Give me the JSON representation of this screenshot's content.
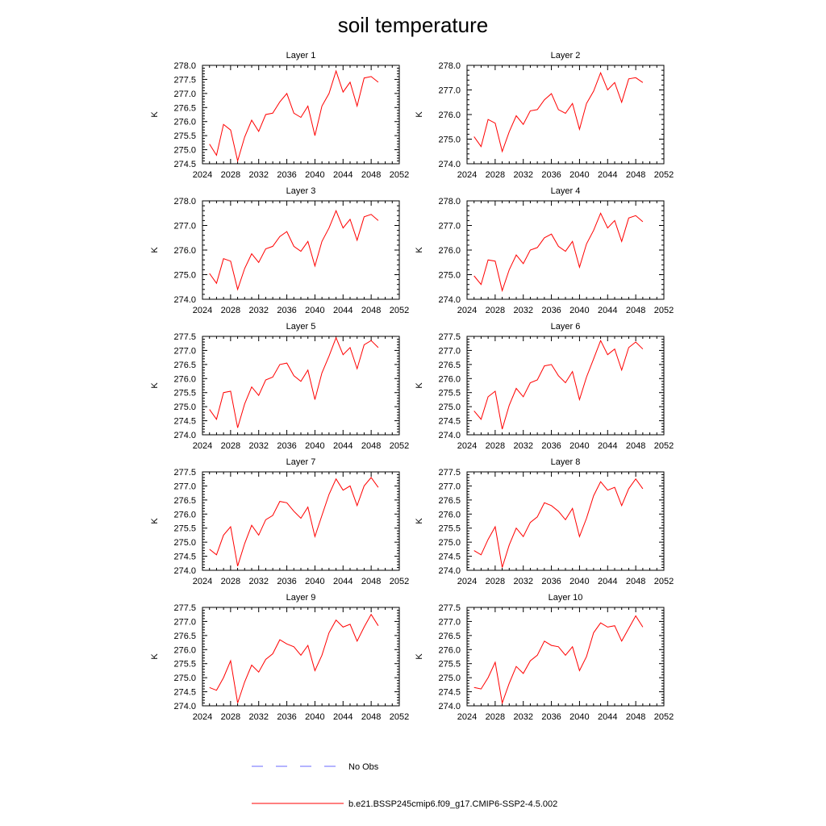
{
  "title": "soil temperature",
  "legend": {
    "entries": [
      {
        "label": "No Obs",
        "color": "#0000ff",
        "style": "dashed"
      },
      {
        "label": "b.e21.BSSP245cmip6.f09_g17.CMIP6-SSP2-4.5.002",
        "color": "#ff0000",
        "style": "solid"
      }
    ]
  },
  "chart_data": [
    {
      "type": "line",
      "title": "Layer 1",
      "ylabel": "K",
      "xlim": [
        2024,
        2052
      ],
      "ylim": [
        274.5,
        278.0
      ],
      "xticks": [
        "2024",
        "2028",
        "2032",
        "2036",
        "2040",
        "2044",
        "2048",
        "2052"
      ],
      "yticks": [
        "274.5",
        "275.0",
        "275.5",
        "276.0",
        "276.5",
        "277.0",
        "277.5",
        "278.0"
      ],
      "x": [
        2025,
        2026,
        2027,
        2028,
        2029,
        2030,
        2031,
        2032,
        2033,
        2034,
        2035,
        2036,
        2037,
        2038,
        2039,
        2040,
        2041,
        2042,
        2043,
        2044,
        2045,
        2046,
        2047,
        2048,
        2049
      ],
      "series": [
        {
          "name": "b.e21.BSSP245cmip6.f09_g17.CMIP6-SSP2-4.5.002",
          "color": "#ff0000",
          "values": [
            275.2,
            274.8,
            275.9,
            275.7,
            274.6,
            275.45,
            276.05,
            275.65,
            276.25,
            276.3,
            276.7,
            277.0,
            276.3,
            276.15,
            276.55,
            275.5,
            276.55,
            277.0,
            277.8,
            277.05,
            277.4,
            276.55,
            277.55,
            277.6,
            277.4
          ]
        }
      ]
    },
    {
      "type": "line",
      "title": "Layer 2",
      "ylabel": "K",
      "xlim": [
        2024,
        2052
      ],
      "ylim": [
        274.0,
        278.0
      ],
      "xticks": [
        "2024",
        "2028",
        "2032",
        "2036",
        "2040",
        "2044",
        "2048",
        "2052"
      ],
      "yticks": [
        "274.0",
        "275.0",
        "276.0",
        "277.0",
        "278.0"
      ],
      "x": [
        2025,
        2026,
        2027,
        2028,
        2029,
        2030,
        2031,
        2032,
        2033,
        2034,
        2035,
        2036,
        2037,
        2038,
        2039,
        2040,
        2041,
        2042,
        2043,
        2044,
        2045,
        2046,
        2047,
        2048,
        2049
      ],
      "series": [
        {
          "name": "b.e21.BSSP245cmip6.f09_g17.CMIP6-SSP2-4.5.002",
          "color": "#ff0000",
          "values": [
            275.1,
            274.7,
            275.8,
            275.65,
            274.5,
            275.3,
            275.95,
            275.6,
            276.15,
            276.2,
            276.6,
            276.85,
            276.2,
            276.05,
            276.45,
            275.4,
            276.45,
            276.95,
            277.7,
            277.0,
            277.3,
            276.5,
            277.45,
            277.5,
            277.3
          ]
        }
      ]
    },
    {
      "type": "line",
      "title": "Layer 3",
      "ylabel": "K",
      "xlim": [
        2024,
        2052
      ],
      "ylim": [
        274.0,
        278.0
      ],
      "xticks": [
        "2024",
        "2028",
        "2032",
        "2036",
        "2040",
        "2044",
        "2048",
        "2052"
      ],
      "yticks": [
        "274.0",
        "275.0",
        "276.0",
        "277.0",
        "278.0"
      ],
      "x": [
        2025,
        2026,
        2027,
        2028,
        2029,
        2030,
        2031,
        2032,
        2033,
        2034,
        2035,
        2036,
        2037,
        2038,
        2039,
        2040,
        2041,
        2042,
        2043,
        2044,
        2045,
        2046,
        2047,
        2048,
        2049
      ],
      "series": [
        {
          "name": "b.e21.BSSP245cmip6.f09_g17.CMIP6-SSP2-4.5.002",
          "color": "#ff0000",
          "values": [
            275.05,
            274.65,
            275.65,
            275.55,
            274.4,
            275.25,
            275.85,
            275.5,
            276.05,
            276.15,
            276.55,
            276.75,
            276.15,
            275.95,
            276.35,
            275.35,
            276.35,
            276.9,
            277.6,
            276.9,
            277.25,
            276.4,
            277.35,
            277.45,
            277.2
          ]
        }
      ]
    },
    {
      "type": "line",
      "title": "Layer 4",
      "ylabel": "K",
      "xlim": [
        2024,
        2052
      ],
      "ylim": [
        274.0,
        278.0
      ],
      "xticks": [
        "2024",
        "2028",
        "2032",
        "2036",
        "2040",
        "2044",
        "2048",
        "2052"
      ],
      "yticks": [
        "274.0",
        "275.0",
        "276.0",
        "277.0",
        "278.0"
      ],
      "x": [
        2025,
        2026,
        2027,
        2028,
        2029,
        2030,
        2031,
        2032,
        2033,
        2034,
        2035,
        2036,
        2037,
        2038,
        2039,
        2040,
        2041,
        2042,
        2043,
        2044,
        2045,
        2046,
        2047,
        2048,
        2049
      ],
      "series": [
        {
          "name": "b.e21.BSSP245cmip6.f09_g17.CMIP6-SSP2-4.5.002",
          "color": "#ff0000",
          "values": [
            274.95,
            274.6,
            275.6,
            275.55,
            274.35,
            275.2,
            275.8,
            275.45,
            276.0,
            276.1,
            276.5,
            276.65,
            276.15,
            275.95,
            276.35,
            275.3,
            276.25,
            276.8,
            277.5,
            276.9,
            277.2,
            276.35,
            277.3,
            277.4,
            277.15
          ]
        }
      ]
    },
    {
      "type": "line",
      "title": "Layer 5",
      "ylabel": "K",
      "xlim": [
        2024,
        2052
      ],
      "ylim": [
        274.0,
        277.5
      ],
      "xticks": [
        "2024",
        "2028",
        "2032",
        "2036",
        "2040",
        "2044",
        "2048",
        "2052"
      ],
      "yticks": [
        "274.0",
        "274.5",
        "275.0",
        "275.5",
        "276.0",
        "276.5",
        "277.0",
        "277.5"
      ],
      "x": [
        2025,
        2026,
        2027,
        2028,
        2029,
        2030,
        2031,
        2032,
        2033,
        2034,
        2035,
        2036,
        2037,
        2038,
        2039,
        2040,
        2041,
        2042,
        2043,
        2044,
        2045,
        2046,
        2047,
        2048,
        2049
      ],
      "series": [
        {
          "name": "b.e21.BSSP245cmip6.f09_g17.CMIP6-SSP2-4.5.002",
          "color": "#ff0000",
          "values": [
            274.9,
            274.55,
            275.5,
            275.55,
            274.25,
            275.1,
            275.7,
            275.4,
            275.95,
            276.05,
            276.5,
            276.55,
            276.1,
            275.9,
            276.3,
            275.25,
            276.2,
            276.8,
            277.45,
            276.85,
            277.1,
            276.35,
            277.2,
            277.35,
            277.1
          ]
        }
      ]
    },
    {
      "type": "line",
      "title": "Layer 6",
      "ylabel": "K",
      "xlim": [
        2024,
        2052
      ],
      "ylim": [
        274.0,
        277.5
      ],
      "xticks": [
        "2024",
        "2028",
        "2032",
        "2036",
        "2040",
        "2044",
        "2048",
        "2052"
      ],
      "yticks": [
        "274.0",
        "274.5",
        "275.0",
        "275.5",
        "276.0",
        "276.5",
        "277.0",
        "277.5"
      ],
      "x": [
        2025,
        2026,
        2027,
        2028,
        2029,
        2030,
        2031,
        2032,
        2033,
        2034,
        2035,
        2036,
        2037,
        2038,
        2039,
        2040,
        2041,
        2042,
        2043,
        2044,
        2045,
        2046,
        2047,
        2048,
        2049
      ],
      "series": [
        {
          "name": "b.e21.BSSP245cmip6.f09_g17.CMIP6-SSP2-4.5.002",
          "color": "#ff0000",
          "values": [
            274.85,
            274.55,
            275.35,
            275.55,
            274.2,
            275.05,
            275.65,
            275.35,
            275.85,
            275.95,
            276.45,
            276.5,
            276.1,
            275.85,
            276.25,
            275.25,
            276.05,
            276.7,
            277.35,
            276.85,
            277.05,
            276.3,
            277.1,
            277.3,
            277.05
          ]
        }
      ]
    },
    {
      "type": "line",
      "title": "Layer 7",
      "ylabel": "K",
      "xlim": [
        2024,
        2052
      ],
      "ylim": [
        274.0,
        277.5
      ],
      "xticks": [
        "2024",
        "2028",
        "2032",
        "2036",
        "2040",
        "2044",
        "2048",
        "2052"
      ],
      "yticks": [
        "274.0",
        "274.5",
        "275.0",
        "275.5",
        "276.0",
        "276.5",
        "277.0",
        "277.5"
      ],
      "x": [
        2025,
        2026,
        2027,
        2028,
        2029,
        2030,
        2031,
        2032,
        2033,
        2034,
        2035,
        2036,
        2037,
        2038,
        2039,
        2040,
        2041,
        2042,
        2043,
        2044,
        2045,
        2046,
        2047,
        2048,
        2049
      ],
      "series": [
        {
          "name": "b.e21.BSSP245cmip6.f09_g17.CMIP6-SSP2-4.5.002",
          "color": "#ff0000",
          "values": [
            274.75,
            274.55,
            275.25,
            275.55,
            274.15,
            274.95,
            275.6,
            275.25,
            275.8,
            275.95,
            276.45,
            276.4,
            276.1,
            275.85,
            276.25,
            275.2,
            275.95,
            276.7,
            277.25,
            276.85,
            277.0,
            276.3,
            277.0,
            277.3,
            276.95
          ]
        }
      ]
    },
    {
      "type": "line",
      "title": "Layer 8",
      "ylabel": "K",
      "xlim": [
        2024,
        2052
      ],
      "ylim": [
        274.0,
        277.5
      ],
      "xticks": [
        "2024",
        "2028",
        "2032",
        "2036",
        "2040",
        "2044",
        "2048",
        "2052"
      ],
      "yticks": [
        "274.0",
        "274.5",
        "275.0",
        "275.5",
        "276.0",
        "276.5",
        "277.0",
        "277.5"
      ],
      "x": [
        2025,
        2026,
        2027,
        2028,
        2029,
        2030,
        2031,
        2032,
        2033,
        2034,
        2035,
        2036,
        2037,
        2038,
        2039,
        2040,
        2041,
        2042,
        2043,
        2044,
        2045,
        2046,
        2047,
        2048,
        2049
      ],
      "series": [
        {
          "name": "b.e21.BSSP245cmip6.f09_g17.CMIP6-SSP2-4.5.002",
          "color": "#ff0000",
          "values": [
            274.7,
            274.55,
            275.1,
            275.55,
            274.1,
            274.9,
            275.5,
            275.2,
            275.7,
            275.9,
            276.4,
            276.3,
            276.1,
            275.8,
            276.2,
            275.2,
            275.85,
            276.65,
            277.15,
            276.85,
            276.95,
            276.3,
            276.9,
            277.25,
            276.9
          ]
        }
      ]
    },
    {
      "type": "line",
      "title": "Layer 9",
      "ylabel": "K",
      "xlim": [
        2024,
        2052
      ],
      "ylim": [
        274.0,
        277.5
      ],
      "xticks": [
        "2024",
        "2028",
        "2032",
        "2036",
        "2040",
        "2044",
        "2048",
        "2052"
      ],
      "yticks": [
        "274.0",
        "274.5",
        "275.0",
        "275.5",
        "276.0",
        "276.5",
        "277.0",
        "277.5"
      ],
      "x": [
        2025,
        2026,
        2027,
        2028,
        2029,
        2030,
        2031,
        2032,
        2033,
        2034,
        2035,
        2036,
        2037,
        2038,
        2039,
        2040,
        2041,
        2042,
        2043,
        2044,
        2045,
        2046,
        2047,
        2048,
        2049
      ],
      "series": [
        {
          "name": "b.e21.BSSP245cmip6.f09_g17.CMIP6-SSP2-4.5.002",
          "color": "#ff0000",
          "values": [
            274.65,
            274.55,
            275.0,
            275.6,
            274.1,
            274.85,
            275.45,
            275.2,
            275.65,
            275.85,
            276.35,
            276.2,
            276.1,
            275.8,
            276.15,
            275.25,
            275.8,
            276.6,
            277.05,
            276.8,
            276.9,
            276.3,
            276.8,
            277.25,
            276.85
          ]
        }
      ]
    },
    {
      "type": "line",
      "title": "Layer 10",
      "ylabel": "K",
      "xlim": [
        2024,
        2052
      ],
      "ylim": [
        274.0,
        277.5
      ],
      "xticks": [
        "2024",
        "2028",
        "2032",
        "2036",
        "2040",
        "2044",
        "2048",
        "2052"
      ],
      "yticks": [
        "274.0",
        "274.5",
        "275.0",
        "275.5",
        "276.0",
        "276.5",
        "277.0",
        "277.5"
      ],
      "x": [
        2025,
        2026,
        2027,
        2028,
        2029,
        2030,
        2031,
        2032,
        2033,
        2034,
        2035,
        2036,
        2037,
        2038,
        2039,
        2040,
        2041,
        2042,
        2043,
        2044,
        2045,
        2046,
        2047,
        2048,
        2049
      ],
      "series": [
        {
          "name": "b.e21.BSSP245cmip6.f09_g17.CMIP6-SSP2-4.5.002",
          "color": "#ff0000",
          "values": [
            274.65,
            274.6,
            275.0,
            275.55,
            274.1,
            274.8,
            275.4,
            275.15,
            275.6,
            275.8,
            276.3,
            276.15,
            276.1,
            275.8,
            276.1,
            275.25,
            275.75,
            276.6,
            276.95,
            276.8,
            276.85,
            276.3,
            276.75,
            277.2,
            276.8
          ]
        }
      ]
    }
  ]
}
